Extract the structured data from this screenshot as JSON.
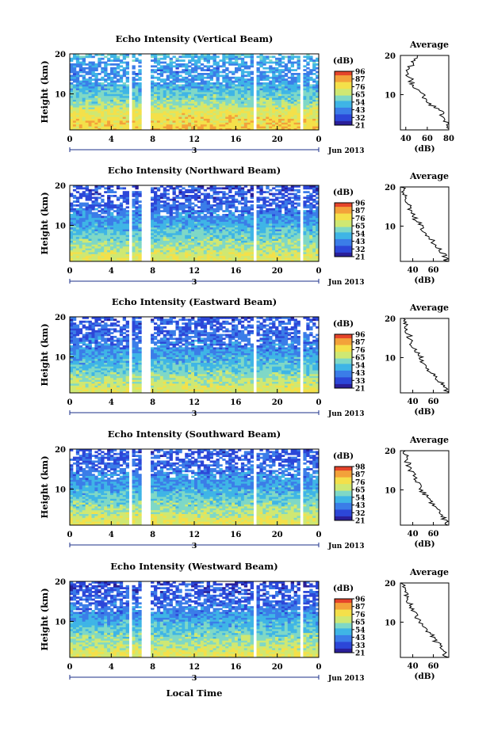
{
  "figure": {
    "ylabel": "Height (km)",
    "xlabel": "Local Time",
    "date_label": "Jun 2013",
    "day_label": "3",
    "colorbar_label": "(dB)",
    "avg_title": "Average",
    "avg_xlabel": "(dB)"
  },
  "colors": {
    "scale": [
      "#2a1f99",
      "#2c47d8",
      "#3b7de8",
      "#3fb5e6",
      "#7fd8c6",
      "#cfe873",
      "#f4e04a",
      "#f3a23a",
      "#e5442a"
    ]
  },
  "chart_data": [
    {
      "type": "heatmap",
      "title": "Echo Intensity (Vertical Beam)",
      "x_ticks": [
        "0",
        "4",
        "8",
        "12",
        "16",
        "20",
        "0"
      ],
      "xlim": [
        0,
        24
      ],
      "y_ticks": [
        "10",
        "20"
      ],
      "ylim": [
        1,
        20
      ],
      "colorbar_ticks": [
        "96",
        "87",
        "76",
        "65",
        "54",
        "43",
        "32",
        "21"
      ],
      "data_gaps_hours": [
        [
          5.7,
          6.0
        ],
        [
          7.0,
          7.8
        ],
        [
          17.8,
          18.0
        ],
        [
          22.2,
          22.4
        ]
      ],
      "intensity_profile": {
        "heights_km": [
          2,
          4,
          6,
          8,
          10,
          12,
          14,
          16,
          18,
          20
        ],
        "db": [
          80,
          76,
          72,
          60,
          55,
          48,
          44,
          42,
          46,
          52
        ]
      },
      "average": {
        "x_ticks": [
          "40",
          "60",
          "80"
        ],
        "xlim": [
          35,
          80
        ],
        "y_ticks": [
          "10",
          "20"
        ],
        "ylim": [
          1,
          20
        ]
      }
    },
    {
      "type": "heatmap",
      "title": "Echo Intensity (Northward Beam)",
      "x_ticks": [
        "0",
        "4",
        "8",
        "12",
        "16",
        "20",
        "0"
      ],
      "xlim": [
        0,
        24
      ],
      "y_ticks": [
        "10",
        "20"
      ],
      "ylim": [
        1,
        20
      ],
      "colorbar_ticks": [
        "96",
        "87",
        "76",
        "65",
        "54",
        "43",
        "32",
        "21"
      ],
      "data_gaps_hours": [
        [
          5.7,
          6.0
        ],
        [
          7.0,
          7.8
        ],
        [
          17.8,
          18.0
        ],
        [
          22.2,
          22.4
        ]
      ],
      "intensity_profile": {
        "heights_km": [
          2,
          4,
          6,
          8,
          10,
          12,
          14,
          16,
          18,
          20
        ],
        "db": [
          72,
          66,
          60,
          54,
          48,
          42,
          38,
          34,
          32,
          30
        ]
      },
      "average": {
        "x_ticks": [
          "40",
          "60"
        ],
        "xlim": [
          28,
          75
        ],
        "y_ticks": [
          "10",
          "20"
        ],
        "ylim": [
          1,
          20
        ]
      }
    },
    {
      "type": "heatmap",
      "title": "Echo Intensity (Eastward Beam)",
      "x_ticks": [
        "0",
        "4",
        "8",
        "12",
        "16",
        "20",
        "0"
      ],
      "xlim": [
        0,
        24
      ],
      "y_ticks": [
        "10",
        "20"
      ],
      "ylim": [
        1,
        20
      ],
      "colorbar_ticks": [
        "96",
        "87",
        "76",
        "65",
        "54",
        "43",
        "33",
        "21"
      ],
      "data_gaps_hours": [
        [
          5.7,
          6.0
        ],
        [
          7.0,
          7.8
        ],
        [
          17.8,
          18.0
        ],
        [
          22.2,
          22.4
        ]
      ],
      "intensity_profile": {
        "heights_km": [
          2,
          4,
          6,
          8,
          10,
          12,
          14,
          16,
          18,
          20
        ],
        "db": [
          72,
          66,
          58,
          52,
          48,
          42,
          38,
          36,
          34,
          32
        ]
      },
      "average": {
        "x_ticks": [
          "40",
          "60"
        ],
        "xlim": [
          28,
          75
        ],
        "y_ticks": [
          "10",
          "20"
        ],
        "ylim": [
          1,
          20
        ]
      }
    },
    {
      "type": "heatmap",
      "title": "Echo Intensity (Southward Beam)",
      "x_ticks": [
        "0",
        "4",
        "8",
        "12",
        "16",
        "20",
        "0"
      ],
      "xlim": [
        0,
        24
      ],
      "y_ticks": [
        "10",
        "20"
      ],
      "ylim": [
        1,
        20
      ],
      "colorbar_ticks": [
        "98",
        "87",
        "76",
        "65",
        "54",
        "43",
        "32",
        "21"
      ],
      "data_gaps_hours": [
        [
          5.7,
          6.0
        ],
        [
          7.0,
          7.8
        ],
        [
          17.8,
          18.0
        ],
        [
          22.2,
          22.4
        ]
      ],
      "intensity_profile": {
        "heights_km": [
          2,
          4,
          6,
          8,
          10,
          12,
          14,
          16,
          18,
          20
        ],
        "db": [
          72,
          66,
          60,
          54,
          48,
          44,
          40,
          36,
          34,
          32
        ]
      },
      "average": {
        "x_ticks": [
          "40",
          "60"
        ],
        "xlim": [
          28,
          75
        ],
        "y_ticks": [
          "10",
          "20"
        ],
        "ylim": [
          1,
          20
        ]
      }
    },
    {
      "type": "heatmap",
      "title": "Echo Intensity (Westward Beam)",
      "x_ticks": [
        "0",
        "4",
        "8",
        "12",
        "16",
        "20",
        "0"
      ],
      "xlim": [
        0,
        24
      ],
      "y_ticks": [
        "10",
        "20"
      ],
      "ylim": [
        1,
        20
      ],
      "colorbar_ticks": [
        "96",
        "87",
        "76",
        "65",
        "54",
        "43",
        "33",
        "21"
      ],
      "data_gaps_hours": [
        [
          5.7,
          6.0
        ],
        [
          7.0,
          7.8
        ],
        [
          17.8,
          18.0
        ],
        [
          22.2,
          22.4
        ]
      ],
      "intensity_profile": {
        "heights_km": [
          2,
          4,
          6,
          8,
          10,
          12,
          14,
          16,
          18,
          20
        ],
        "db": [
          72,
          66,
          60,
          54,
          48,
          42,
          38,
          34,
          32,
          30
        ]
      },
      "average": {
        "x_ticks": [
          "40",
          "60"
        ],
        "xlim": [
          28,
          75
        ],
        "y_ticks": [
          "10",
          "20"
        ],
        "ylim": [
          1,
          20
        ]
      }
    }
  ]
}
